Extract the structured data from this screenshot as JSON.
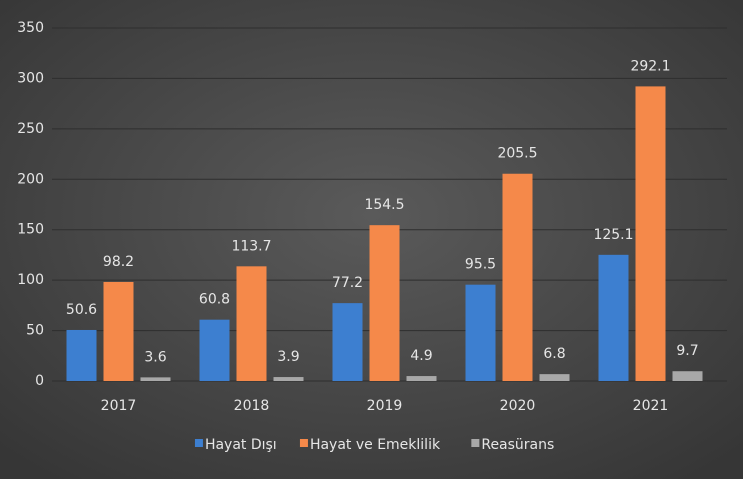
{
  "chart_data": {
    "type": "bar",
    "categories": [
      "2017",
      "2018",
      "2019",
      "2020",
      "2021"
    ],
    "series": [
      {
        "name": "Hayat Dışı",
        "color": "#3d7fd0",
        "values": [
          50.6,
          60.8,
          77.2,
          95.5,
          125.1
        ]
      },
      {
        "name": "Hayat ve Emeklilik",
        "color": "#f5894a",
        "values": [
          98.2,
          113.7,
          154.5,
          205.5,
          292.1
        ]
      },
      {
        "name": "Reasürans",
        "color": "#a8a8a8",
        "values": [
          3.6,
          3.9,
          4.9,
          6.8,
          9.7
        ]
      }
    ],
    "ylim": [
      0,
      350
    ],
    "yticks": [
      0,
      50,
      100,
      150,
      200,
      250,
      300,
      350
    ],
    "grid": true,
    "legend": "bottom"
  }
}
